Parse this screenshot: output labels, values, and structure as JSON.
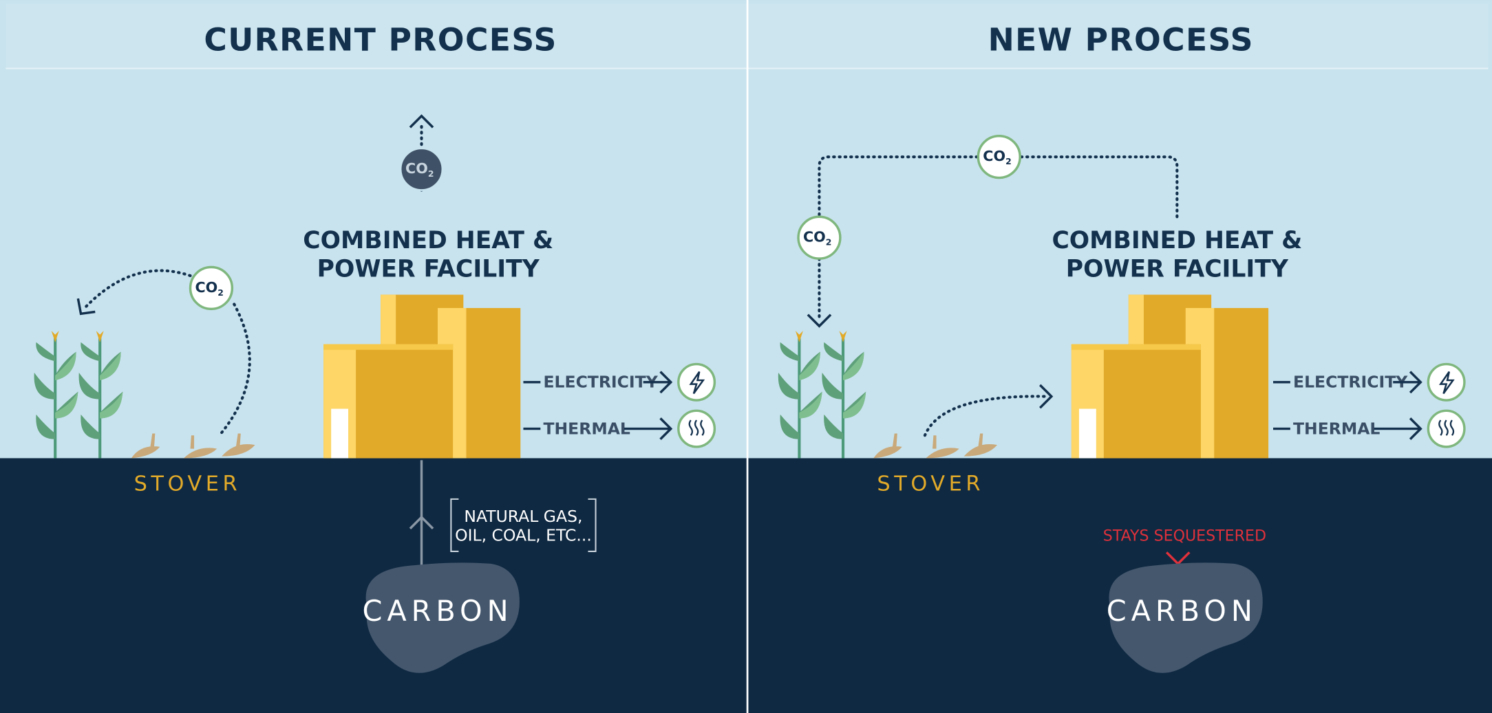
{
  "panels": [
    {
      "title": "CURRENT PROCESS",
      "facility": [
        "COMBINED HEAT &",
        "POWER FACILITY"
      ],
      "outputs": [
        "ELECTRICITY",
        "THERMAL"
      ],
      "feedstock": "STOVER",
      "co2_badges": [
        {
          "text": "CO",
          "subscript": "2"
        },
        {
          "text": "CO",
          "subscript": "2"
        }
      ],
      "source_note": [
        "NATURAL GAS,",
        "OIL, COAL, ETC..."
      ],
      "carbon": "CARBON"
    },
    {
      "title": "NEW PROCESS",
      "facility": [
        "COMBINED HEAT &",
        "POWER FACILITY"
      ],
      "outputs": [
        "ELECTRICITY",
        "THERMAL"
      ],
      "feedstock": "STOVER",
      "co2_badges": [
        {
          "text": "CO",
          "subscript": "2"
        },
        {
          "text": "CO",
          "subscript": "2"
        }
      ],
      "carbon_note": "STAYS SEQUESTERED",
      "carbon": "CARBON"
    }
  ]
}
